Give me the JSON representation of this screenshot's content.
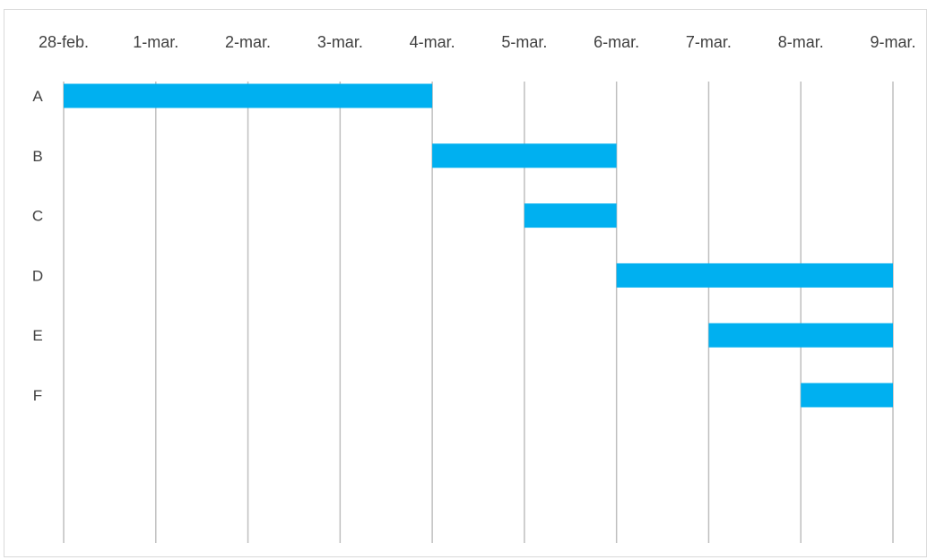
{
  "chart_data": {
    "type": "bar",
    "orientation": "horizontal",
    "title": "",
    "xlabel": "",
    "ylabel": "",
    "x_axis_position": "top",
    "grid": "vertical",
    "legend": "none",
    "bar_color": "#00B0F0",
    "gridline_color": "#BFBFBF",
    "text_color": "#404040",
    "x_tick_labels": [
      "28-feb.",
      "1-mar.",
      "2-mar.",
      "3-mar.",
      "4-mar.",
      "5-mar.",
      "6-mar.",
      "7-mar.",
      "8-mar.",
      "9-mar."
    ],
    "xlim": [
      "28-feb.",
      "9-mar."
    ],
    "categories": [
      "A",
      "B",
      "C",
      "D",
      "E",
      "F"
    ],
    "series": [
      {
        "starts": [
          "28-feb.",
          "4-mar.",
          "5-mar.",
          "6-mar.",
          "7-mar.",
          "8-mar."
        ],
        "ends": [
          "4-mar.",
          "6-mar.",
          "6-mar.",
          "9-mar.",
          "9-mar.",
          "9-mar."
        ]
      }
    ]
  }
}
